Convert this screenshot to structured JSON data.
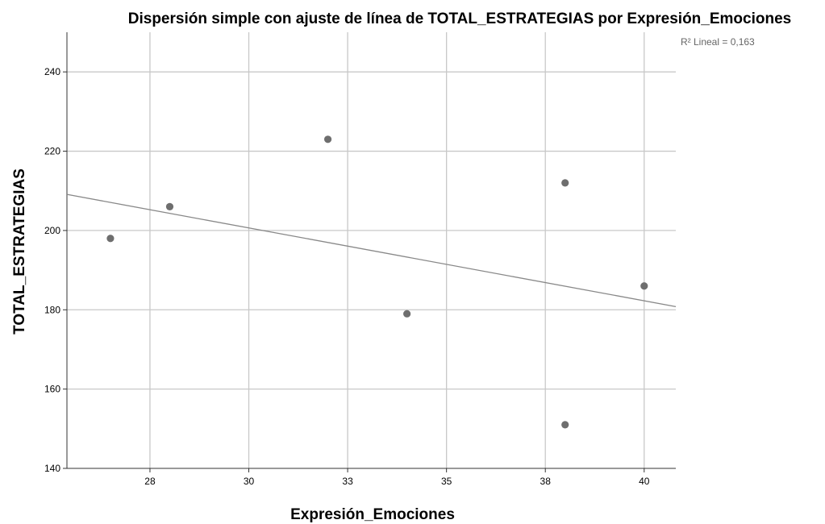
{
  "chart_data": {
    "type": "scatter",
    "title": "Dispersión simple con ajuste de línea de TOTAL_ESTRATEGIAS por Expresión_Emociones",
    "xlabel": "Expresión_Emociones",
    "ylabel": "TOTAL_ESTRATEGIAS",
    "xlim": [
      25.4,
      40.8
    ],
    "ylim": [
      140,
      250
    ],
    "x_ticks": [
      {
        "value": 27.5,
        "label": "28"
      },
      {
        "value": 30,
        "label": "30"
      },
      {
        "value": 32.5,
        "label": "33"
      },
      {
        "value": 35,
        "label": "35"
      },
      {
        "value": 37.5,
        "label": "38"
      },
      {
        "value": 40,
        "label": "40"
      }
    ],
    "y_ticks": [
      {
        "value": 140,
        "label": "140"
      },
      {
        "value": 160,
        "label": "160"
      },
      {
        "value": 180,
        "label": "180"
      },
      {
        "value": 200,
        "label": "200"
      },
      {
        "value": 220,
        "label": "220"
      },
      {
        "value": 240,
        "label": "240"
      }
    ],
    "grid": true,
    "points": [
      {
        "x": 26.5,
        "y": 198
      },
      {
        "x": 28.0,
        "y": 206
      },
      {
        "x": 32.0,
        "y": 223
      },
      {
        "x": 34.0,
        "y": 179
      },
      {
        "x": 38.0,
        "y": 212
      },
      {
        "x": 38.0,
        "y": 151
      },
      {
        "x": 40.0,
        "y": 186
      }
    ],
    "fit_line": {
      "type": "linear",
      "x": [
        25.4,
        40.8
      ],
      "y": [
        209.1,
        180.8
      ]
    },
    "annotation": "R² Lineal = 0,163",
    "colors": {
      "points": "#6e6e6e",
      "fit_line": "#888888",
      "grid": "#c8c8c8",
      "axis": "#333333"
    }
  }
}
